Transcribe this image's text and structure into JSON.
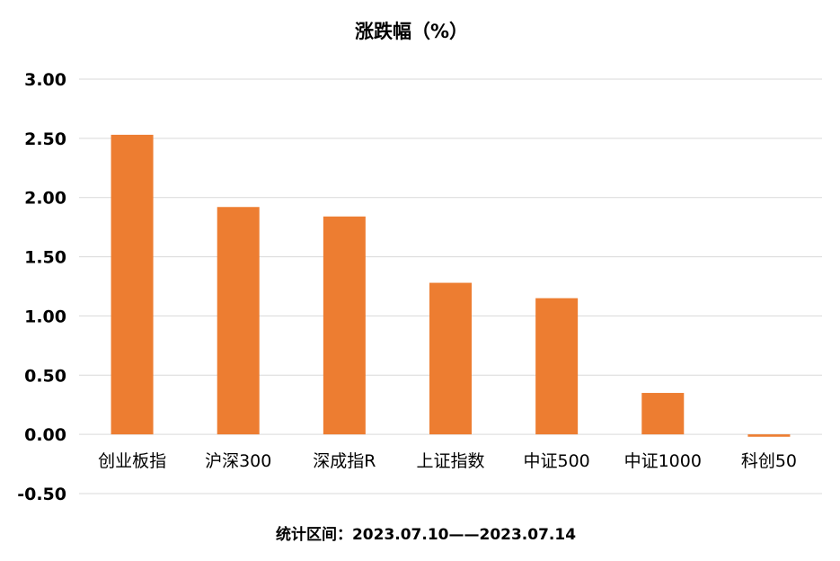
{
  "chart_data": {
    "type": "bar",
    "title": "涨跌幅（%）",
    "categories": [
      "创业板指",
      "沪深300",
      "深成指R",
      "上证指数",
      "中证500",
      "中证1000",
      "科创50"
    ],
    "values": [
      2.53,
      1.92,
      1.84,
      1.28,
      1.15,
      0.35,
      -0.02
    ],
    "ylim": [
      -0.5,
      3.0
    ],
    "yticks": [
      "-0.50",
      "0.00",
      "0.50",
      "1.00",
      "1.50",
      "2.00",
      "2.50",
      "3.00"
    ],
    "grid": true,
    "bar_color": "#ED7D31",
    "note": "统计区间：2023.07.10——2023.07.14"
  }
}
